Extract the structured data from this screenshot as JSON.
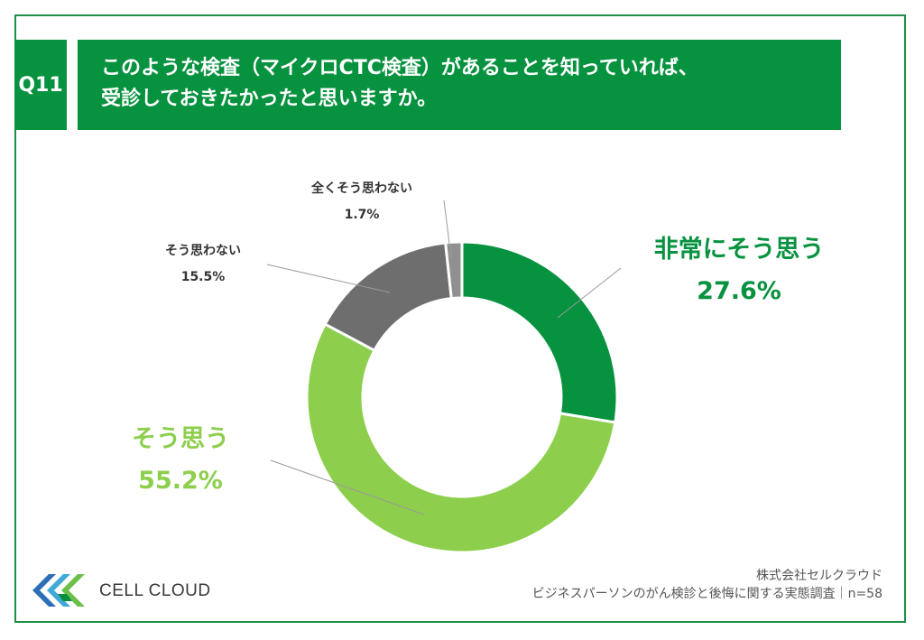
{
  "question": {
    "badge": "Q11",
    "line1": "このような検査（マイクロCTC検査）があることを知っていれば、",
    "line2": "受診しておきたかったと思いますか。"
  },
  "colors": {
    "brand_green": "#07923f",
    "light_green": "#8dcf4d",
    "dark_gray": "#6e6e6e",
    "light_gray": "#909090"
  },
  "chart_data": {
    "type": "pie",
    "variant": "donut",
    "start": "top",
    "direction": "clockwise",
    "series": [
      {
        "name": "非常にそう思う",
        "value": 27.6,
        "value_label": "27.6%",
        "color": "#07923f"
      },
      {
        "name": "そう思う",
        "value": 55.2,
        "value_label": "55.2%",
        "color": "#8dcf4d"
      },
      {
        "name": "そう思わない",
        "value": 15.5,
        "value_label": "15.5%",
        "color": "#6e6e6e"
      },
      {
        "name": "全くそう思わない",
        "value": 1.7,
        "value_label": "1.7%",
        "color": "#909090"
      }
    ]
  },
  "footer": {
    "company": "株式会社セルクラウド",
    "survey": "ビジネスパーソンのがん検診と後悔に関する実態調査｜n=58",
    "logo_text": "CELL CLOUD"
  }
}
